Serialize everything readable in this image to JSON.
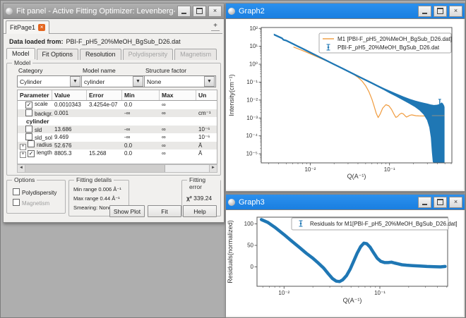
{
  "colors": {
    "desktop_bg": "#aeaeae",
    "titlebar_blue": "#1f87e8",
    "mpl_blue": "#1f77b4",
    "mpl_orange": "#f09b3d",
    "tab_close_badge": "#e4651f",
    "spine": "#555555"
  },
  "window_controls": {
    "close": "×"
  },
  "icons": {
    "check": "✓",
    "expand_plus": "+",
    "dropdown": "▼",
    "scroll_left": "◄",
    "scroll_right": "►",
    "add_tab": "+",
    "tab_close": "×"
  },
  "fit_panel": {
    "title": "Fit panel - Active Fitting Optimizer: Levenberg-...",
    "tab_label": "FitPage1",
    "data_loaded_label": "Data loaded from:",
    "data_loaded_value": "PBI-F_pH5_20%MeOH_BgSub_D26.dat",
    "tabs": [
      {
        "label": "Model",
        "active": true,
        "enabled": true
      },
      {
        "label": "Fit Options",
        "active": false,
        "enabled": true
      },
      {
        "label": "Resolution",
        "active": false,
        "enabled": true
      },
      {
        "label": "Polydispersity",
        "active": false,
        "enabled": false
      },
      {
        "label": "Magnetism",
        "active": false,
        "enabled": false
      }
    ],
    "model_group": {
      "title": "Model",
      "category": {
        "label": "Category",
        "value": "Cylinder"
      },
      "model_name": {
        "label": "Model name",
        "value": "cylinder"
      },
      "structure_factor": {
        "label": "Structure factor",
        "value": "None"
      }
    },
    "param_table": {
      "headers": [
        "Parameter",
        "Value",
        "Error",
        "Min",
        "Max",
        "Un"
      ],
      "rows": [
        {
          "type": "param",
          "name": "scale",
          "checked": true,
          "expand": false,
          "shaded": false,
          "value": "0.0010343",
          "error": "3.4254e-07",
          "min": "0.0",
          "max": "∞",
          "units": ""
        },
        {
          "type": "param",
          "name": "backgr...",
          "checked": false,
          "expand": false,
          "shaded": true,
          "value": "0.001",
          "error": "",
          "min": "-∞",
          "max": "∞",
          "units": "cm⁻¹"
        },
        {
          "type": "group",
          "name": "cylinder"
        },
        {
          "type": "param",
          "name": "sld",
          "checked": false,
          "expand": false,
          "shaded": true,
          "value": "13.686",
          "error": "",
          "min": "-∞",
          "max": "∞",
          "units": "10⁻⁶"
        },
        {
          "type": "param",
          "name": "sld_sol...",
          "checked": false,
          "expand": false,
          "shaded": false,
          "value": "9.469",
          "error": "",
          "min": "-∞",
          "max": "∞",
          "units": "10⁻⁶"
        },
        {
          "type": "param",
          "name": "radius",
          "checked": false,
          "expand": true,
          "shaded": true,
          "value": "52.676",
          "error": "",
          "min": "0.0",
          "max": "∞",
          "units": "Å"
        },
        {
          "type": "param",
          "name": "length",
          "checked": true,
          "expand": true,
          "shaded": false,
          "value": "8805.3",
          "error": "15.268",
          "min": "0.0",
          "max": "∞",
          "units": "Å"
        }
      ]
    },
    "options_group": {
      "title": "Options",
      "items": [
        {
          "label": "Polydispersity",
          "checked": false,
          "enabled": true
        },
        {
          "label": "Magnetism",
          "checked": false,
          "enabled": false
        }
      ]
    },
    "fitting_details": {
      "title": "Fitting details",
      "rows": [
        {
          "label": "Min range",
          "value": "0.006",
          "unit": "Å⁻¹"
        },
        {
          "label": "Max range",
          "value": "0.44",
          "unit": "Å⁻¹"
        },
        {
          "label": "Smearing:",
          "value": "None",
          "unit": ""
        }
      ]
    },
    "fitting_error": {
      "title": "Fitting error",
      "symbol": "χ²",
      "value": "339.24"
    },
    "buttons": [
      {
        "label": "Show Plot"
      },
      {
        "label": "Fit"
      },
      {
        "label": "Help"
      }
    ]
  },
  "graph2_window": {
    "title": "Graph2"
  },
  "graph3_window": {
    "title": "Graph3"
  },
  "chart_data": [
    {
      "id": "graph2",
      "type": "line",
      "title": "Graph2",
      "xlabel": "Q(A⁻¹)",
      "ylabel": "Intensity(cm⁻¹)",
      "xscale": "log",
      "yscale": "log",
      "xlim": [
        0.00241,
        0.612
      ],
      "ylim": [
        3.1e-06,
        112
      ],
      "grid": false,
      "legend_position": "upper right",
      "xticks": [
        {
          "v": 0.01,
          "label": "10⁻²"
        },
        {
          "v": 0.1,
          "label": "10⁻¹"
        }
      ],
      "yticks": [
        {
          "v": 100,
          "label": "10²"
        },
        {
          "v": 10,
          "label": "10¹"
        },
        {
          "v": 1,
          "label": "10⁰"
        },
        {
          "v": 0.1,
          "label": "10⁻¹"
        },
        {
          "v": 0.01,
          "label": "10⁻²"
        },
        {
          "v": 0.001,
          "label": "10⁻³"
        },
        {
          "v": 0.0001,
          "label": "10⁻⁴"
        },
        {
          "v": 1e-05,
          "label": "10⁻⁵"
        }
      ],
      "legend": [
        {
          "sample": "line",
          "color": "#f09b3d",
          "label": "M1 [PBI-F_pH5_20%MeOH_BgSub_D26.dat]"
        },
        {
          "sample": "errorbar",
          "color": "#1f77b4",
          "label": "PBI-F_pH5_20%MeOH_BgSub_D26.dat"
        }
      ],
      "series": [
        {
          "name": "model-fit",
          "type": "line",
          "color": "#f09b3d",
          "width": 1.2,
          "points": [
            [
              0.0062,
              9.0
            ],
            [
              0.008,
              5.8
            ],
            [
              0.01,
              3.8
            ],
            [
              0.013,
              2.3
            ],
            [
              0.017,
              1.35
            ],
            [
              0.022,
              0.8
            ],
            [
              0.028,
              0.48
            ],
            [
              0.035,
              0.28
            ],
            [
              0.04,
              0.185
            ],
            [
              0.045,
              0.115
            ],
            [
              0.05,
              0.062
            ],
            [
              0.055,
              0.029
            ],
            [
              0.06,
              0.011
            ],
            [
              0.064,
              0.0045
            ],
            [
              0.068,
              0.0018
            ],
            [
              0.072,
              0.00105
            ],
            [
              0.076,
              0.0016
            ],
            [
              0.082,
              0.0035
            ],
            [
              0.09,
              0.0055
            ],
            [
              0.098,
              0.0048
            ],
            [
              0.106,
              0.003
            ],
            [
              0.114,
              0.0016
            ],
            [
              0.12,
              0.00108
            ],
            [
              0.126,
              0.00118
            ],
            [
              0.134,
              0.0016
            ],
            [
              0.142,
              0.00185
            ],
            [
              0.15,
              0.00165
            ],
            [
              0.158,
              0.00128
            ],
            [
              0.164,
              0.00112
            ],
            [
              0.172,
              0.00125
            ],
            [
              0.18,
              0.0014
            ],
            [
              0.19,
              0.00148
            ],
            [
              0.2,
              0.00142
            ],
            [
              0.215,
              0.00133
            ],
            [
              0.235,
              0.0013
            ],
            [
              0.27,
              0.00128
            ],
            [
              0.32,
              0.00127
            ],
            [
              0.36,
              0.00127
            ]
          ]
        },
        {
          "name": "data-errorband",
          "type": "band",
          "color": "#1f77b4",
          "points": [
            [
              0.0035,
              42,
              48
            ],
            [
              0.004,
              32,
              36.5
            ],
            [
              0.0044,
              26.5,
              30
            ],
            [
              0.0046,
              21.5,
              24.5
            ],
            [
              0.005,
              19.4,
              22
            ],
            [
              0.006,
              13.1,
              14.8
            ],
            [
              0.007,
              9.3,
              10.5
            ],
            [
              0.008,
              7.0,
              7.9
            ],
            [
              0.01,
              4.26,
              4.8
            ],
            [
              0.012,
              2.86,
              3.22
            ],
            [
              0.015,
              1.74,
              1.96
            ],
            [
              0.02,
              0.92,
              1.04
            ],
            [
              0.025,
              0.57,
              0.64
            ],
            [
              0.03,
              0.38,
              0.43
            ],
            [
              0.04,
              0.2,
              0.226
            ],
            [
              0.05,
              0.123,
              0.14
            ],
            [
              0.06,
              0.082,
              0.094
            ],
            [
              0.07,
              0.058,
              0.067
            ],
            [
              0.085,
              0.0375,
              0.0443
            ],
            [
              0.1,
              0.025,
              0.0325
            ],
            [
              0.12,
              0.0165,
              0.023
            ],
            [
              0.15,
              0.0098,
              0.0152
            ],
            [
              0.18,
              0.0063,
              0.0112
            ],
            [
              0.21,
              0.0042,
              0.009
            ],
            [
              0.24,
              0.0027,
              0.0077
            ],
            [
              0.27,
              0.0016,
              0.0068
            ],
            [
              0.3,
              0.00075,
              0.0061
            ],
            [
              0.32,
              0.0003,
              0.0057
            ],
            [
              0.335,
              8e-05,
              0.0054
            ],
            [
              0.345,
              1.22e-05,
              0.0053
            ],
            [
              0.355,
              3.5e-06,
              0.0052
            ],
            [
              0.37,
              3.2e-06,
              0.0051
            ],
            [
              0.4,
              3.2e-06,
              0.0053
            ],
            [
              0.43,
              3.2e-06,
              0.0058
            ],
            [
              0.455,
              3.2e-06,
              0.007
            ],
            [
              0.47,
              3.2e-06,
              0.0062
            ],
            [
              0.485,
              3.2e-06,
              0.0048
            ],
            [
              0.49,
              3.2e-06,
              0.004
            ]
          ]
        },
        {
          "name": "model-through-data",
          "type": "line",
          "color": "#8d9289",
          "width": 1,
          "points": [
            [
              0.345,
              0.00135
            ],
            [
              0.49,
              0.00135
            ]
          ]
        },
        {
          "name": "outlier-errorbar",
          "type": "vline",
          "color": "#1f77b4",
          "x": 0.43,
          "y0": 0.003,
          "y1": 0.011
        }
      ]
    },
    {
      "id": "graph3",
      "type": "line",
      "title": "Graph3",
      "xlabel": "Q(A⁻¹)",
      "ylabel": "Residuals(normalized)",
      "xscale": "log",
      "yscale": "linear",
      "xlim": [
        0.00522,
        0.51
      ],
      "ylim": [
        -45,
        115.5
      ],
      "grid": false,
      "legend_position": "upper center",
      "xticks": [
        {
          "v": 0.01,
          "label": "10⁻²"
        },
        {
          "v": 0.1,
          "label": "10⁻¹"
        }
      ],
      "yticks": [
        {
          "v": 0,
          "label": "0"
        },
        {
          "v": 50,
          "label": "50"
        },
        {
          "v": 100,
          "label": "100"
        }
      ],
      "legend": [
        {
          "sample": "errorbar",
          "color": "#1f77b4",
          "label": "Residuals for M1[PBI-F_pH5_20%MeOH_BgSub_D26.dat]"
        }
      ],
      "series": [
        {
          "name": "residuals",
          "type": "line",
          "color": "#1f77b4",
          "width": 4.5,
          "points": [
            [
              0.0058,
              110
            ],
            [
              0.0068,
              103
            ],
            [
              0.008,
              92
            ],
            [
              0.01,
              75
            ],
            [
              0.012,
              60
            ],
            [
              0.0145,
              45
            ],
            [
              0.017,
              32
            ],
            [
              0.02,
              20
            ],
            [
              0.023,
              8
            ],
            [
              0.026,
              -3
            ],
            [
              0.029,
              -16
            ],
            [
              0.032,
              -27
            ],
            [
              0.035,
              -33
            ],
            [
              0.038,
              -34
            ],
            [
              0.041,
              -30
            ],
            [
              0.045,
              -20
            ],
            [
              0.049,
              -5
            ],
            [
              0.053,
              12
            ],
            [
              0.058,
              32
            ],
            [
              0.063,
              47
            ],
            [
              0.068,
              55
            ],
            [
              0.073,
              54
            ],
            [
              0.079,
              46
            ],
            [
              0.086,
              33
            ],
            [
              0.094,
              20
            ],
            [
              0.102,
              13
            ],
            [
              0.112,
              10
            ],
            [
              0.122,
              10
            ],
            [
              0.132,
              11
            ],
            [
              0.142,
              9
            ],
            [
              0.155,
              7
            ],
            [
              0.17,
              5
            ],
            [
              0.19,
              4
            ],
            [
              0.22,
              3
            ],
            [
              0.26,
              2
            ],
            [
              0.31,
              1
            ],
            [
              0.37,
              0.5
            ],
            [
              0.43,
              0
            ],
            [
              0.48,
              1
            ]
          ]
        }
      ]
    }
  ]
}
